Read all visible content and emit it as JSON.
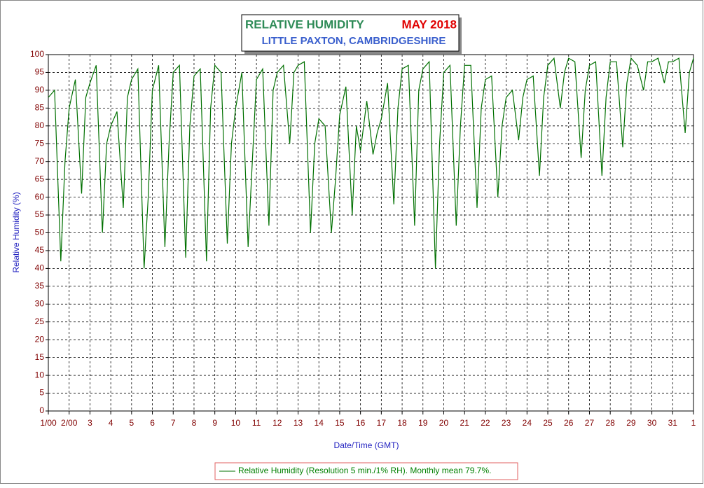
{
  "chart_data": {
    "type": "line",
    "title": "RELATIVE HUMIDITY",
    "title_period": "MAY 2018",
    "subtitle": "LITTLE PAXTON, CAMBRIDGESHIRE",
    "y_label": "Relative Humidity (%)",
    "x_label": "Date/Time (GMT)",
    "x": [
      1,
      1.3,
      1.6,
      1.8,
      2,
      2.3,
      2.6,
      2.8,
      3,
      3.3,
      3.6,
      3.8,
      4,
      4.3,
      4.6,
      4.8,
      5,
      5.3,
      5.6,
      5.8,
      6,
      6.3,
      6.6,
      6.8,
      7,
      7.3,
      7.6,
      7.8,
      8,
      8.3,
      8.6,
      8.8,
      9,
      9.3,
      9.6,
      9.8,
      10,
      10.3,
      10.6,
      10.8,
      11,
      11.3,
      11.6,
      11.8,
      12,
      12.3,
      12.6,
      12.8,
      13,
      13.3,
      13.6,
      13.8,
      14,
      14.3,
      14.6,
      14.8,
      15,
      15.3,
      15.6,
      15.8,
      16,
      16.3,
      16.6,
      16.8,
      17,
      17.3,
      17.6,
      17.8,
      18,
      18.3,
      18.6,
      18.8,
      19,
      19.3,
      19.6,
      19.8,
      20,
      20.3,
      20.6,
      20.8,
      21,
      21.3,
      21.6,
      21.8,
      22,
      22.3,
      22.6,
      22.8,
      23,
      23.3,
      23.6,
      23.8,
      24,
      24.3,
      24.6,
      24.8,
      25,
      25.3,
      25.6,
      25.8,
      26,
      26.3,
      26.6,
      26.8,
      27,
      27.3,
      27.6,
      27.8,
      28,
      28.3,
      28.6,
      28.8,
      29,
      29.3,
      29.6,
      29.8,
      30,
      30.3,
      30.6,
      30.8,
      31,
      31.3,
      31.6,
      31.8,
      32
    ],
    "series": [
      {
        "name": "Relative Humidity (Resolution 5 min./1% RH). Monthly mean 79.7%.",
        "color": "#007000",
        "values": [
          88,
          90,
          42,
          70,
          85,
          93,
          61,
          88,
          92,
          97,
          50,
          75,
          80,
          84,
          57,
          88,
          93,
          96,
          40,
          60,
          90,
          97,
          46,
          75,
          95,
          97,
          43,
          80,
          94,
          96,
          42,
          85,
          97,
          95,
          47,
          75,
          85,
          95,
          46,
          70,
          93,
          96,
          52,
          90,
          95,
          97,
          75,
          95,
          97,
          98,
          50,
          75,
          82,
          80,
          50,
          65,
          83,
          91,
          55,
          80,
          73,
          87,
          72,
          78,
          82,
          92,
          58,
          85,
          96,
          97,
          52,
          90,
          96,
          98,
          40,
          75,
          95,
          97,
          52,
          80,
          97,
          97,
          57,
          85,
          93,
          94,
          60,
          80,
          88,
          90,
          76,
          88,
          93,
          94,
          66,
          88,
          97,
          99,
          85,
          95,
          99,
          98,
          71,
          90,
          97,
          98,
          66,
          88,
          98,
          98,
          74,
          92,
          99,
          97,
          90,
          98,
          98,
          99,
          92,
          98,
          98,
          99,
          78,
          95,
          99
        ]
      }
    ],
    "xlim": [
      1,
      32
    ],
    "xticks": [
      {
        "value": 1,
        "label": "1/00"
      },
      {
        "value": 2,
        "label": "2/00"
      },
      3,
      4,
      5,
      6,
      7,
      8,
      9,
      10,
      11,
      12,
      13,
      14,
      15,
      16,
      17,
      18,
      19,
      20,
      21,
      22,
      23,
      24,
      25,
      26,
      27,
      28,
      29,
      30,
      31,
      {
        "value": 32,
        "label": "1"
      }
    ],
    "ylim": [
      0,
      100
    ],
    "yticks": [
      0,
      5,
      10,
      15,
      20,
      25,
      30,
      35,
      40,
      45,
      50,
      55,
      60,
      65,
      70,
      75,
      80,
      85,
      90,
      95,
      100
    ],
    "grid": true
  }
}
